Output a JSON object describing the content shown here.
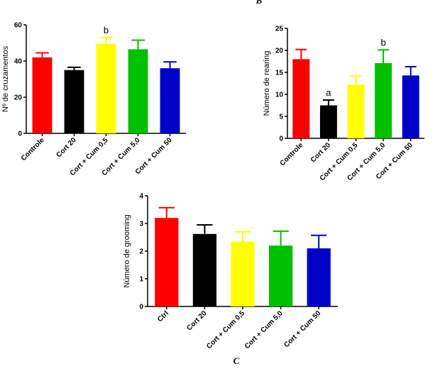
{
  "chart_data": [
    {
      "type": "bar",
      "ylabel": "Nº de cruzamentos",
      "categories": [
        "Controle",
        "Cort 20",
        "Cort + Cum 0,5",
        "Cort + Cum 5,0",
        "Cort + Cum 50"
      ],
      "values": [
        42,
        35,
        49.5,
        46.5,
        36
      ],
      "errors": [
        2.5,
        1.5,
        3.5,
        5,
        3.5
      ],
      "colors": [
        "#ff0000",
        "#000000",
        "#ffff00",
        "#00c000",
        "#0000c8"
      ],
      "bar_labels": [
        null,
        null,
        "b",
        null,
        null
      ],
      "ylim": [
        0,
        60
      ],
      "yticks": [
        0,
        20,
        40,
        60
      ]
    },
    {
      "type": "bar",
      "panel_label": "B",
      "ylabel": "Número de rearing",
      "categories": [
        "Controle",
        "Cort 20",
        "Cort + Cum 0,5",
        "Cort + Cum 5,0",
        "Cort + Cum 50"
      ],
      "values": [
        18,
        7.5,
        12.2,
        17.1,
        14.3
      ],
      "errors": [
        2.2,
        1.2,
        2,
        3,
        2
      ],
      "colors": [
        "#ff0000",
        "#000000",
        "#ffff00",
        "#00c000",
        "#0000c8"
      ],
      "bar_labels": [
        null,
        "a",
        null,
        "b",
        null
      ],
      "ylim": [
        0,
        25
      ],
      "yticks": [
        0,
        5,
        10,
        15,
        20,
        25
      ]
    },
    {
      "type": "bar",
      "panel_label": "C",
      "ylabel": "Número de grooming",
      "categories": [
        "Ctrl",
        "Cort 20",
        "Cort + Cum 0,5",
        "Cort + Cum 5,0",
        "Cort + Cum 50"
      ],
      "values": [
        3.2,
        2.62,
        2.35,
        2.2,
        2.1
      ],
      "errors": [
        0.37,
        0.33,
        0.35,
        0.52,
        0.47
      ],
      "colors": [
        "#ff0000",
        "#000000",
        "#ffff00",
        "#00c000",
        "#0000c8"
      ],
      "bar_labels": [
        null,
        null,
        null,
        null,
        null
      ],
      "ylim": [
        0,
        4
      ],
      "yticks": [
        0,
        1,
        2,
        3,
        4
      ]
    }
  ]
}
